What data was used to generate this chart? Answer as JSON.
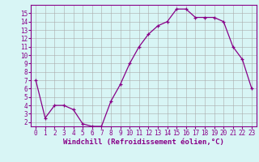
{
  "x": [
    0,
    1,
    2,
    3,
    4,
    5,
    6,
    7,
    8,
    9,
    10,
    11,
    12,
    13,
    14,
    15,
    16,
    17,
    18,
    19,
    20,
    21,
    22,
    23
  ],
  "y": [
    7.0,
    2.5,
    4.0,
    4.0,
    3.5,
    1.8,
    1.5,
    1.5,
    4.5,
    6.5,
    9.0,
    11.0,
    12.5,
    13.5,
    14.0,
    15.5,
    15.5,
    14.5,
    14.5,
    14.5,
    14.0,
    11.0,
    9.5,
    6.0
  ],
  "line_color": "#880088",
  "marker": "+",
  "bg_color": "#d8f5f5",
  "grid_color": "#aaaaaa",
  "xlabel": "Windchill (Refroidissement éolien,°C)",
  "xlim": [
    -0.5,
    23.5
  ],
  "ylim": [
    1.5,
    16.0
  ],
  "yticks": [
    2,
    3,
    4,
    5,
    6,
    7,
    8,
    9,
    10,
    11,
    12,
    13,
    14,
    15
  ],
  "xticks": [
    0,
    1,
    2,
    3,
    4,
    5,
    6,
    7,
    8,
    9,
    10,
    11,
    12,
    13,
    14,
    15,
    16,
    17,
    18,
    19,
    20,
    21,
    22,
    23
  ],
  "axis_color": "#880088",
  "tick_fontsize": 5.5,
  "xlabel_fontsize": 6.5
}
